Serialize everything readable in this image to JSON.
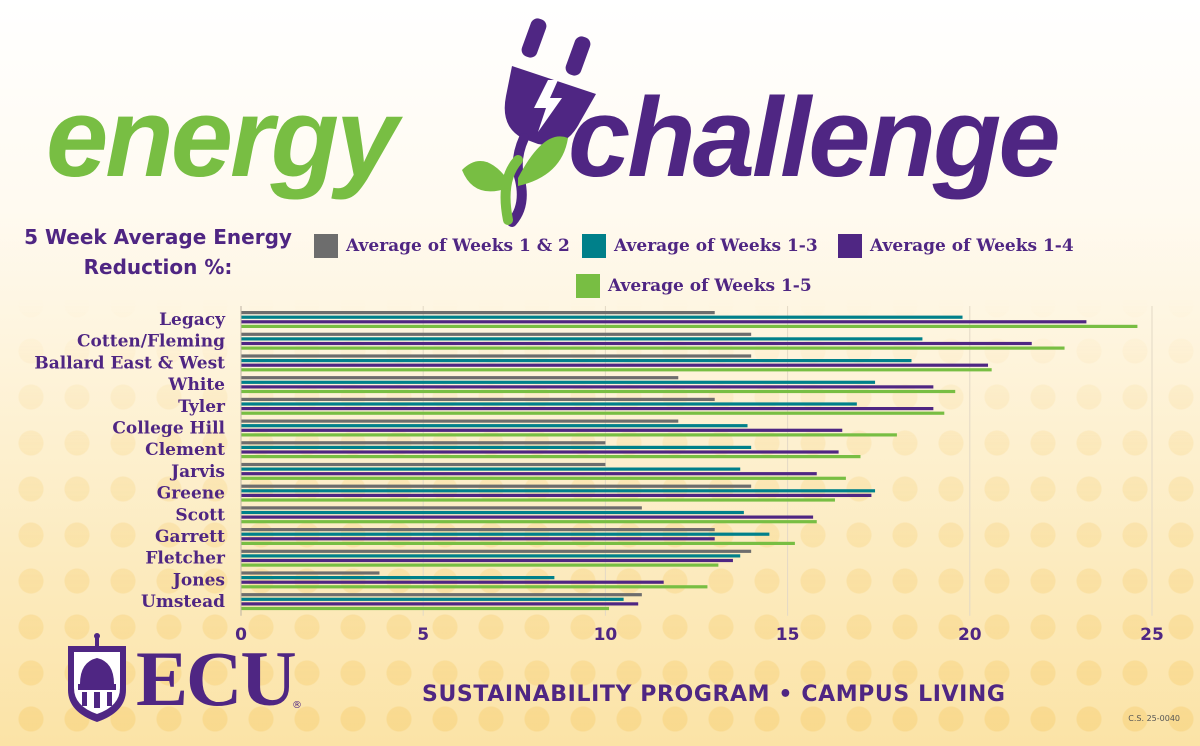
{
  "title": {
    "word1": "energy",
    "word2": "challenge"
  },
  "subtitle": [
    "5 Week Average Energy",
    "Reduction %:"
  ],
  "colors": {
    "green": "#78be43",
    "purple": "#4f2683",
    "teal": "#00808a",
    "gray": "#6d6d6d"
  },
  "icons": {
    "plug": "electric-plug-icon",
    "leaf": "leaf-sprout-icon",
    "crest": "ecu-crest-icon"
  },
  "chart_data": {
    "type": "bar",
    "orientation": "horizontal",
    "categories": [
      "Legacy",
      "Cotten/Fleming",
      "Ballard East & West",
      "White",
      "Tyler",
      "College Hill",
      "Clement",
      "Jarvis",
      "Greene",
      "Scott",
      "Garrett",
      "Fletcher",
      "Jones",
      "Umstead"
    ],
    "series": [
      {
        "name": "Average of Weeks 1 & 2",
        "color": "#6d6d6d",
        "values": [
          13.0,
          14.0,
          14.0,
          12.0,
          13.0,
          12.0,
          10.0,
          10.0,
          14.0,
          11.0,
          13.0,
          14.0,
          3.8,
          11.0
        ]
      },
      {
        "name": "Average of Weeks 1-3",
        "color": "#00808a",
        "values": [
          19.8,
          18.7,
          18.4,
          17.4,
          16.9,
          13.9,
          14.0,
          13.7,
          17.4,
          13.8,
          14.5,
          13.7,
          8.6,
          10.5
        ]
      },
      {
        "name": "Average of Weeks 1-4",
        "color": "#4f2683",
        "values": [
          23.2,
          21.7,
          20.5,
          19.0,
          19.0,
          16.5,
          16.4,
          15.8,
          17.3,
          15.7,
          13.0,
          13.5,
          11.6,
          10.9
        ]
      },
      {
        "name": "Average of Weeks 1-5",
        "color": "#78be43",
        "values": [
          24.6,
          22.6,
          20.6,
          19.6,
          19.3,
          18.0,
          17.0,
          16.6,
          16.3,
          15.8,
          15.2,
          13.1,
          12.8,
          10.1
        ]
      }
    ],
    "xlim": [
      0,
      25
    ],
    "xticks": [
      "0",
      "5",
      "10",
      "15",
      "20",
      "25"
    ],
    "grid": true,
    "legend_position": "top"
  },
  "footer": {
    "program": "SUSTAINABILITY PROGRAM • CAMPUS LIVING",
    "code": "C.S. 25-0040"
  },
  "logo": {
    "text": "ECU",
    "reg": "®"
  }
}
